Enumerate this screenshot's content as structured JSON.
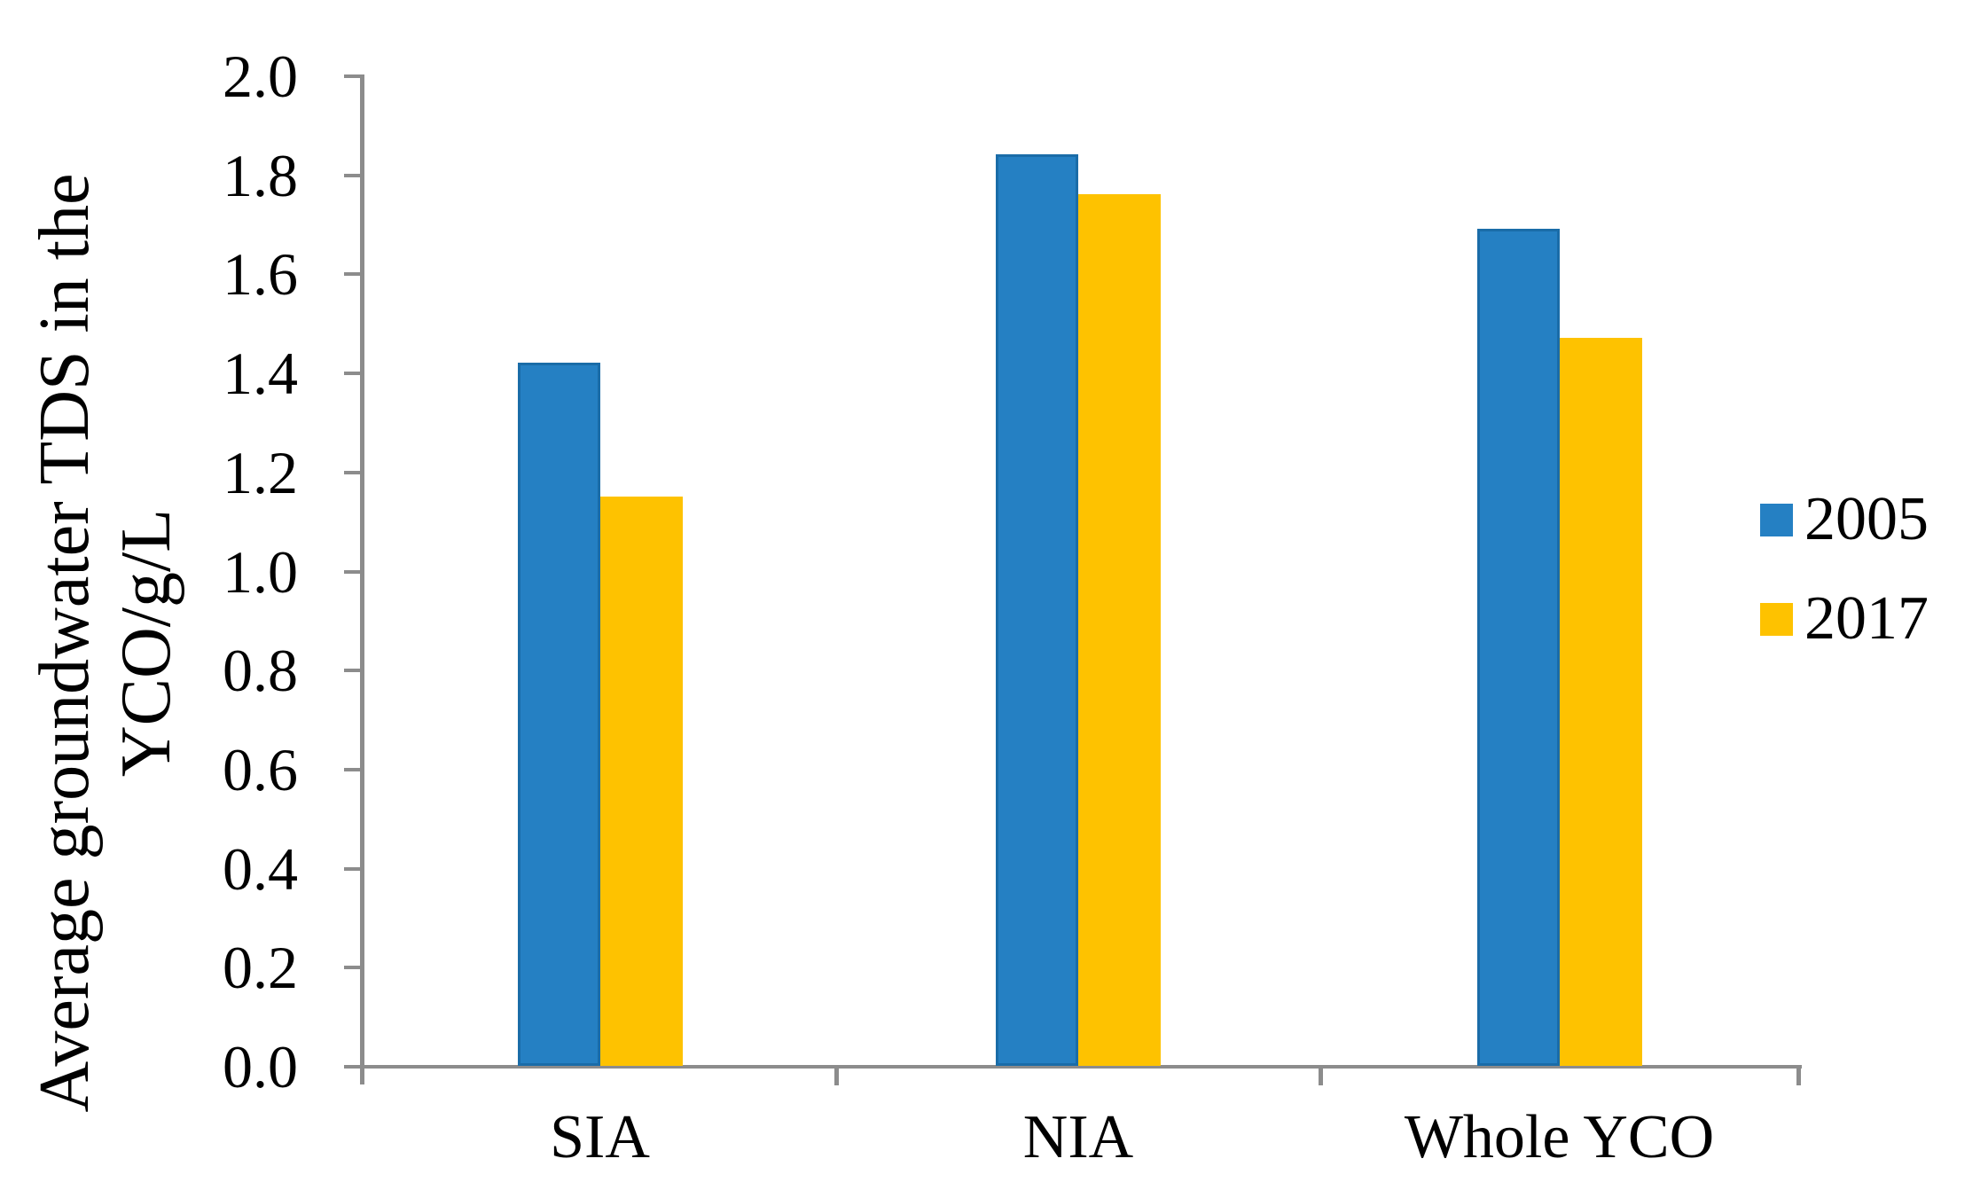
{
  "chart_data": {
    "type": "bar",
    "title": "",
    "categories": [
      "SIA",
      "NIA",
      "Whole YCO"
    ],
    "series": [
      {
        "name": "2005",
        "color": "#2580C3",
        "border_color": "#1A6CA8",
        "values": [
          1.42,
          1.84,
          1.69
        ]
      },
      {
        "name": "2017",
        "color": "#FEC200",
        "border_color": null,
        "values": [
          1.15,
          1.76,
          1.47
        ]
      }
    ],
    "ylabel_lines": [
      "Average groundwater TDS in the",
      "YCO/g/L"
    ],
    "ylabel": "Average groundwater TDS in the YCO/g/L",
    "xlabel": "",
    "ylim": [
      0.0,
      2.0
    ],
    "ytick_step": 0.2,
    "ytick_labels": [
      "0.0",
      "0.2",
      "0.4",
      "0.6",
      "0.8",
      "1.0",
      "1.2",
      "1.4",
      "1.6",
      "1.8",
      "2.0"
    ],
    "grid": false,
    "legend_position": "right",
    "legend_labels": [
      "2005",
      "2017"
    ],
    "axis_color": "#8C8C8C",
    "text_color": "#000000",
    "background_color": "#FFFFFF"
  }
}
